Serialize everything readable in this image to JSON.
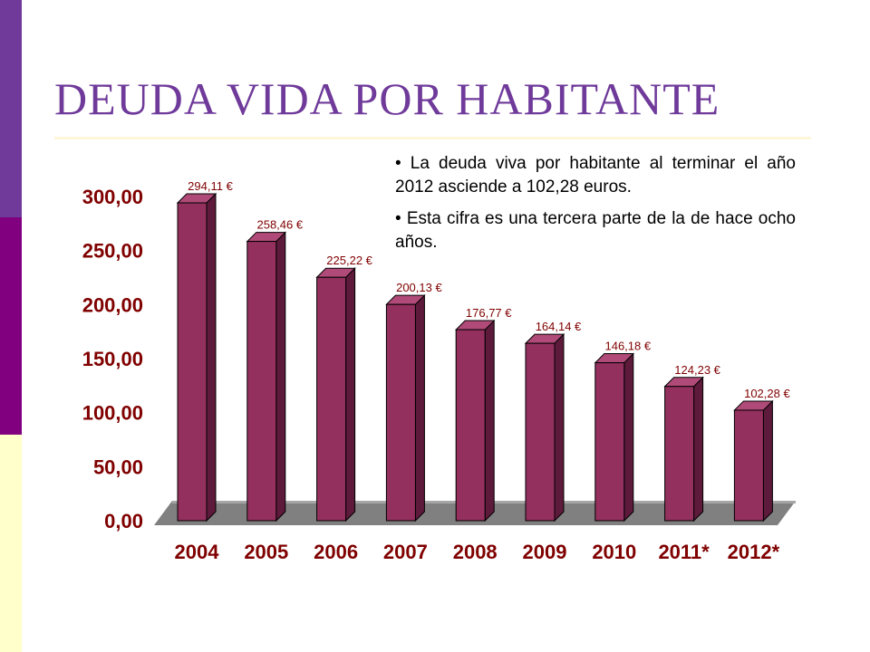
{
  "slide": {
    "title": "DEUDA VIDA POR HABITANTE",
    "bullets": [
      "• La deuda viva por habitante al terminar el año 2012 asciende a 102,28 euros.",
      "• Esta cifra es una tercera parte de la de hace ocho años."
    ]
  },
  "chart_data": {
    "type": "bar",
    "style": "3d",
    "categories": [
      "2004",
      "2005",
      "2006",
      "2007",
      "2008",
      "2009",
      "2010",
      "2011*",
      "2012*"
    ],
    "values": [
      294.11,
      258.46,
      225.22,
      200.13,
      176.77,
      164.14,
      146.18,
      124.23,
      102.28
    ],
    "data_labels": [
      "294,11 €",
      "258,46 €",
      "225,22 €",
      "200,13 €",
      "176,77 €",
      "164,14 €",
      "146,18 €",
      "124,23 €",
      "102,28 €"
    ],
    "ylim": [
      0,
      300
    ],
    "yticks": [
      "0,00",
      "50,00",
      "100,00",
      "150,00",
      "200,00",
      "250,00",
      "300,00"
    ],
    "grid": false,
    "colors": {
      "bar_front": "#93305e",
      "bar_side": "#5e1a3b",
      "bar_top": "#b04a78",
      "floor": "#808080",
      "floor_top": "#a6a6a6",
      "labels": "#800000"
    }
  }
}
